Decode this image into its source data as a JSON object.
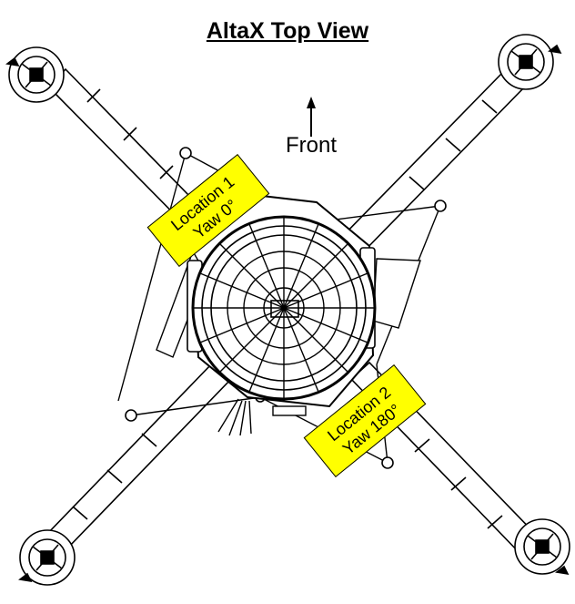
{
  "title": "AltaX Top View",
  "direction": {
    "label": "Front"
  },
  "locations": [
    {
      "line1": "Location 1",
      "line2": "Yaw 0°"
    },
    {
      "line1": "Location 2",
      "line2": "Yaw 180°"
    }
  ],
  "colors": {
    "label_fill": "#ffff00",
    "line": "#000000"
  }
}
